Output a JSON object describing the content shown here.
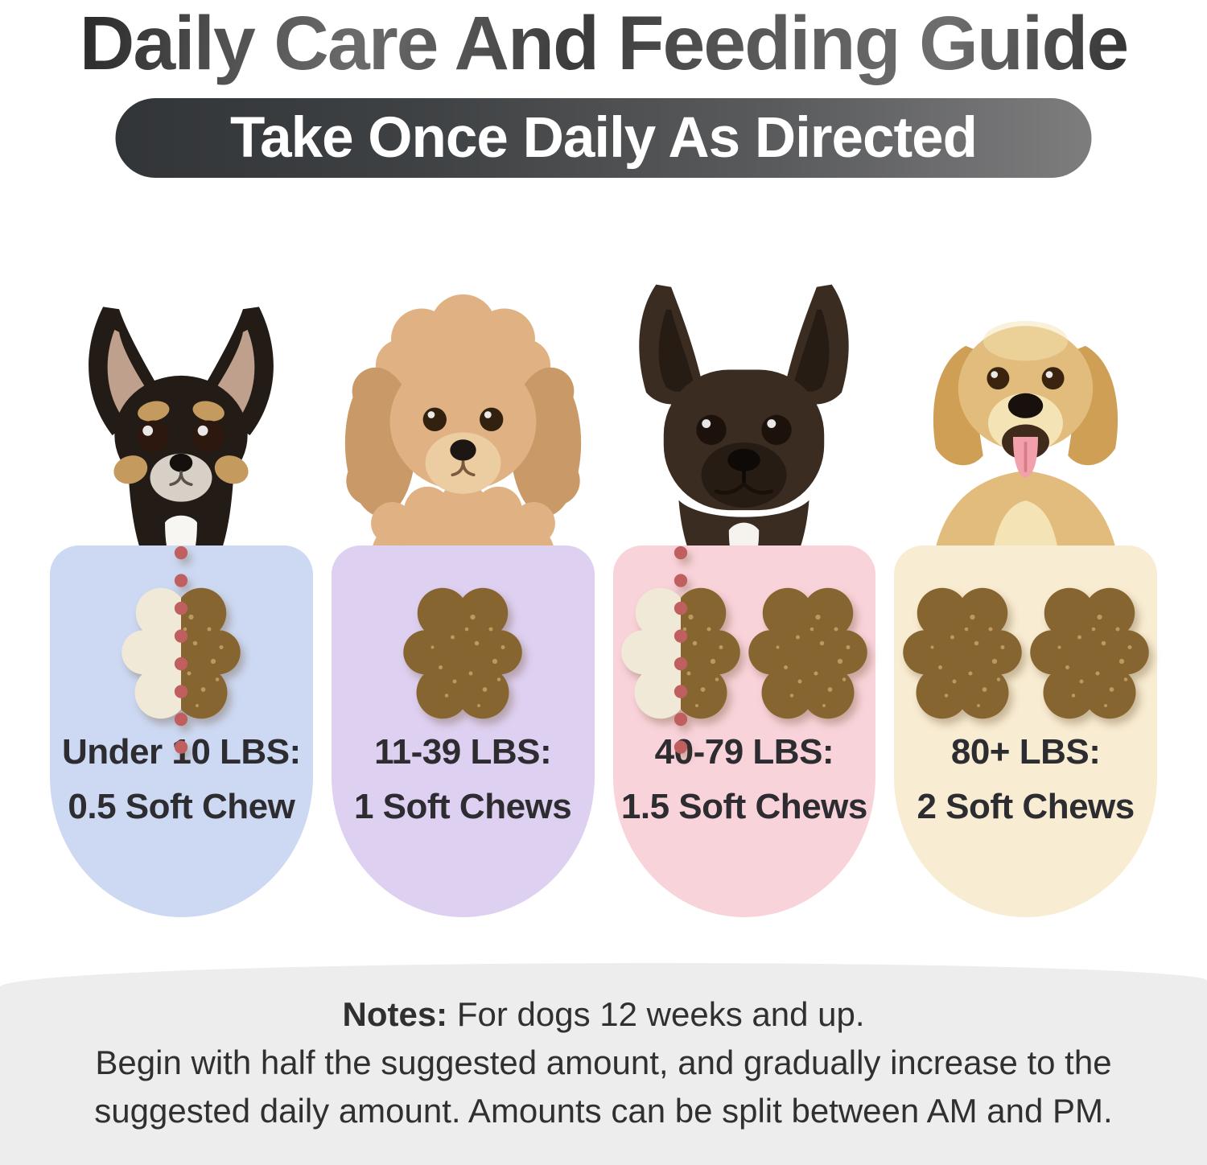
{
  "header": {
    "title": "Daily Care And Feeding Guide",
    "banner": "Take Once Daily As Directed"
  },
  "dogs": [
    {
      "breed": "Chihuahua"
    },
    {
      "breed": "Poodle"
    },
    {
      "breed": "French Bulldog"
    },
    {
      "breed": "Golden Retriever"
    }
  ],
  "cards": [
    {
      "weight_label": "Under 10 LBS:",
      "dose_label": "0.5 Soft Chew",
      "bg": "#cdd9f3",
      "chews": [
        "half"
      ]
    },
    {
      "weight_label": "11-39 LBS:",
      "dose_label": "1 Soft Chews",
      "bg": "#ded0f1",
      "chews": [
        "full"
      ]
    },
    {
      "weight_label": "40-79 LBS:",
      "dose_label": "1.5 Soft Chews",
      "bg": "#f9d3da",
      "chews": [
        "half",
        "full"
      ]
    },
    {
      "weight_label": "80+ LBS:",
      "dose_label": "2 Soft Chews",
      "bg": "#f8ecd2",
      "chews": [
        "full",
        "full"
      ]
    }
  ],
  "notes": {
    "heading": "Notes:",
    "line1": " For dogs 12 weeks and up.",
    "line2": "Begin with half the suggested amount, and gradually increase to the",
    "line3": "suggested daily amount. Amounts can be split between AM and PM."
  },
  "colors": {
    "banner-dark": "#323538",
    "banner-light": "#7d7d7e",
    "chew-brown": "#876531",
    "chew-ghost": "#f1e9d7",
    "chew-speckle": "#e3c87f",
    "dot-red": "#c05f5f",
    "notes-bg": "#ededed",
    "title-gray": "#3a3a3a"
  }
}
